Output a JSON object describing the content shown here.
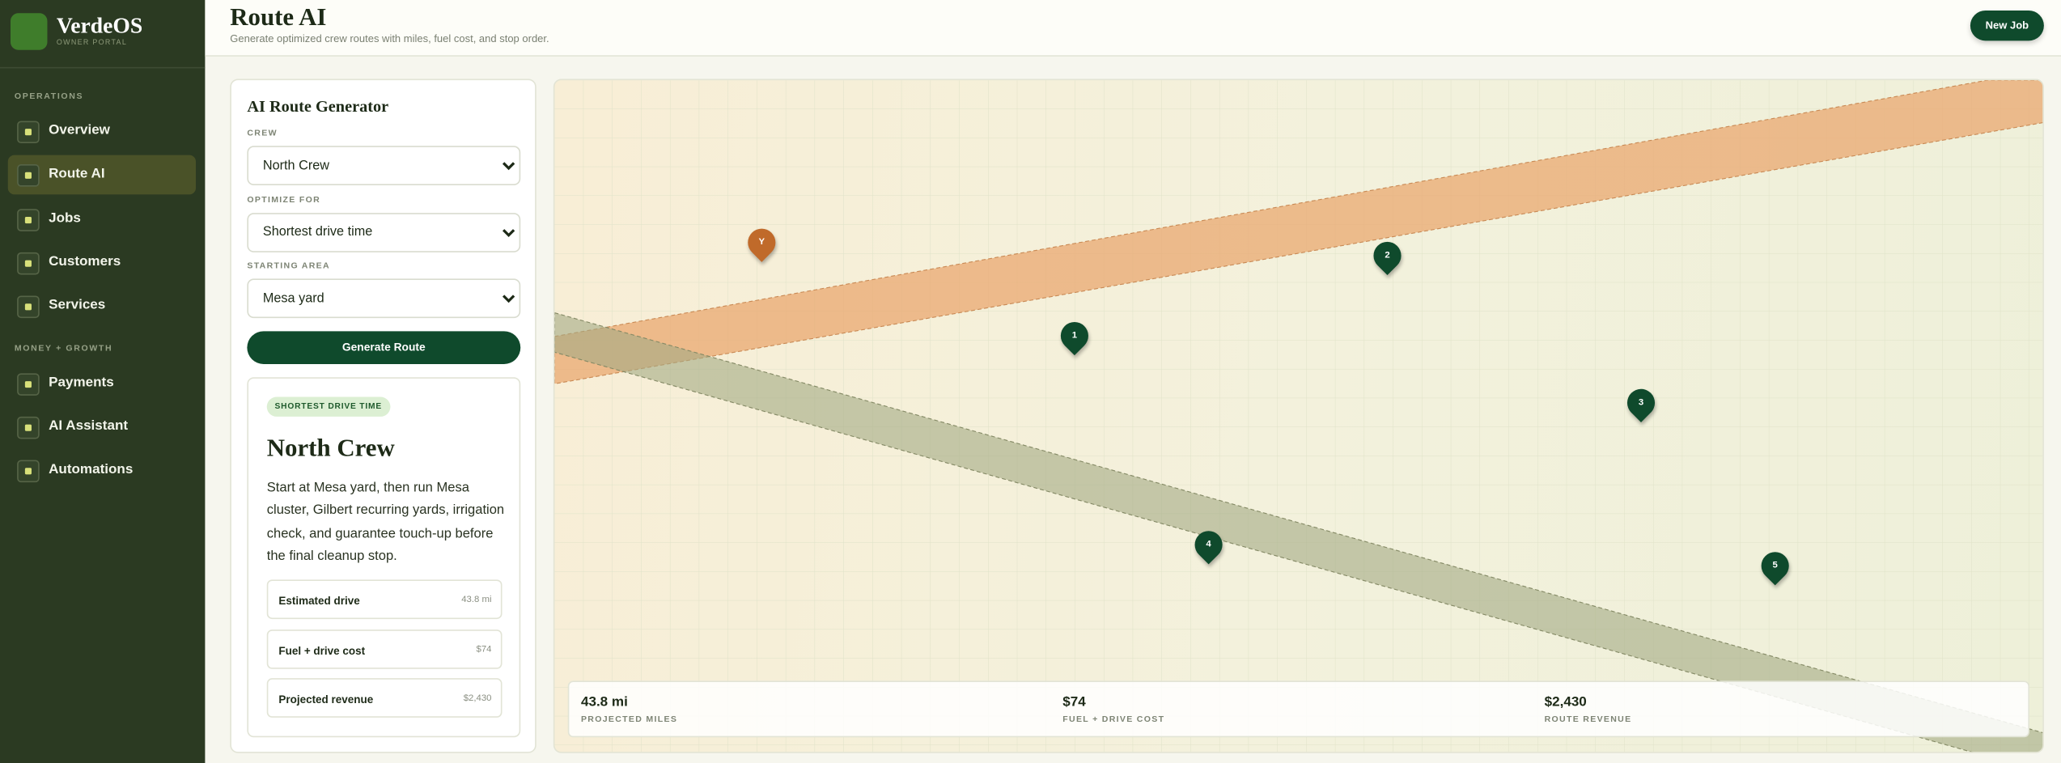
{
  "sidebar": {
    "brand": "VerdeOS",
    "tagline": "OWNER PORTAL",
    "sections": [
      {
        "label": "OPERATIONS",
        "items": [
          "Overview",
          "Route AI",
          "Jobs",
          "Customers",
          "Services"
        ]
      },
      {
        "label": "MONEY + GROWTH",
        "items": [
          "Payments",
          "AI Assistant",
          "Automations"
        ]
      }
    ]
  },
  "header": {
    "title": "Route AI",
    "subtitle": "Generate optimized crew routes with miles, fuel cost, and stop order.",
    "button": "New Job"
  },
  "form": {
    "title": "AI Route Generator",
    "fields": [
      {
        "label": "CREW",
        "value": "North Crew"
      },
      {
        "label": "OPTIMIZE FOR",
        "value": "Shortest drive time"
      },
      {
        "label": "STARTING AREA",
        "value": "Mesa yard"
      }
    ],
    "button": "Generate Route"
  },
  "result": {
    "badge": "SHORTEST DRIVE TIME",
    "title": "North Crew",
    "description": "Start at Mesa yard, then run Mesa cluster, Gilbert recurring yards, irrigation check, and guarantee touch-up before the final cleanup stop.",
    "metrics": [
      {
        "label": "Estimated drive",
        "value": "43.8 mi"
      },
      {
        "label": "Fuel + drive cost",
        "value": "$74"
      },
      {
        "label": "Projected revenue",
        "value": "$2,430"
      }
    ]
  },
  "map": {
    "pins": [
      "Y",
      "1",
      "2",
      "3",
      "4",
      "5"
    ],
    "stats": [
      {
        "value": "43.8 mi",
        "label": "PROJECTED MILES"
      },
      {
        "value": "$74",
        "label": "FUEL + DRIVE COST"
      },
      {
        "value": "$2,430",
        "label": "ROUTE REVENUE"
      }
    ]
  }
}
